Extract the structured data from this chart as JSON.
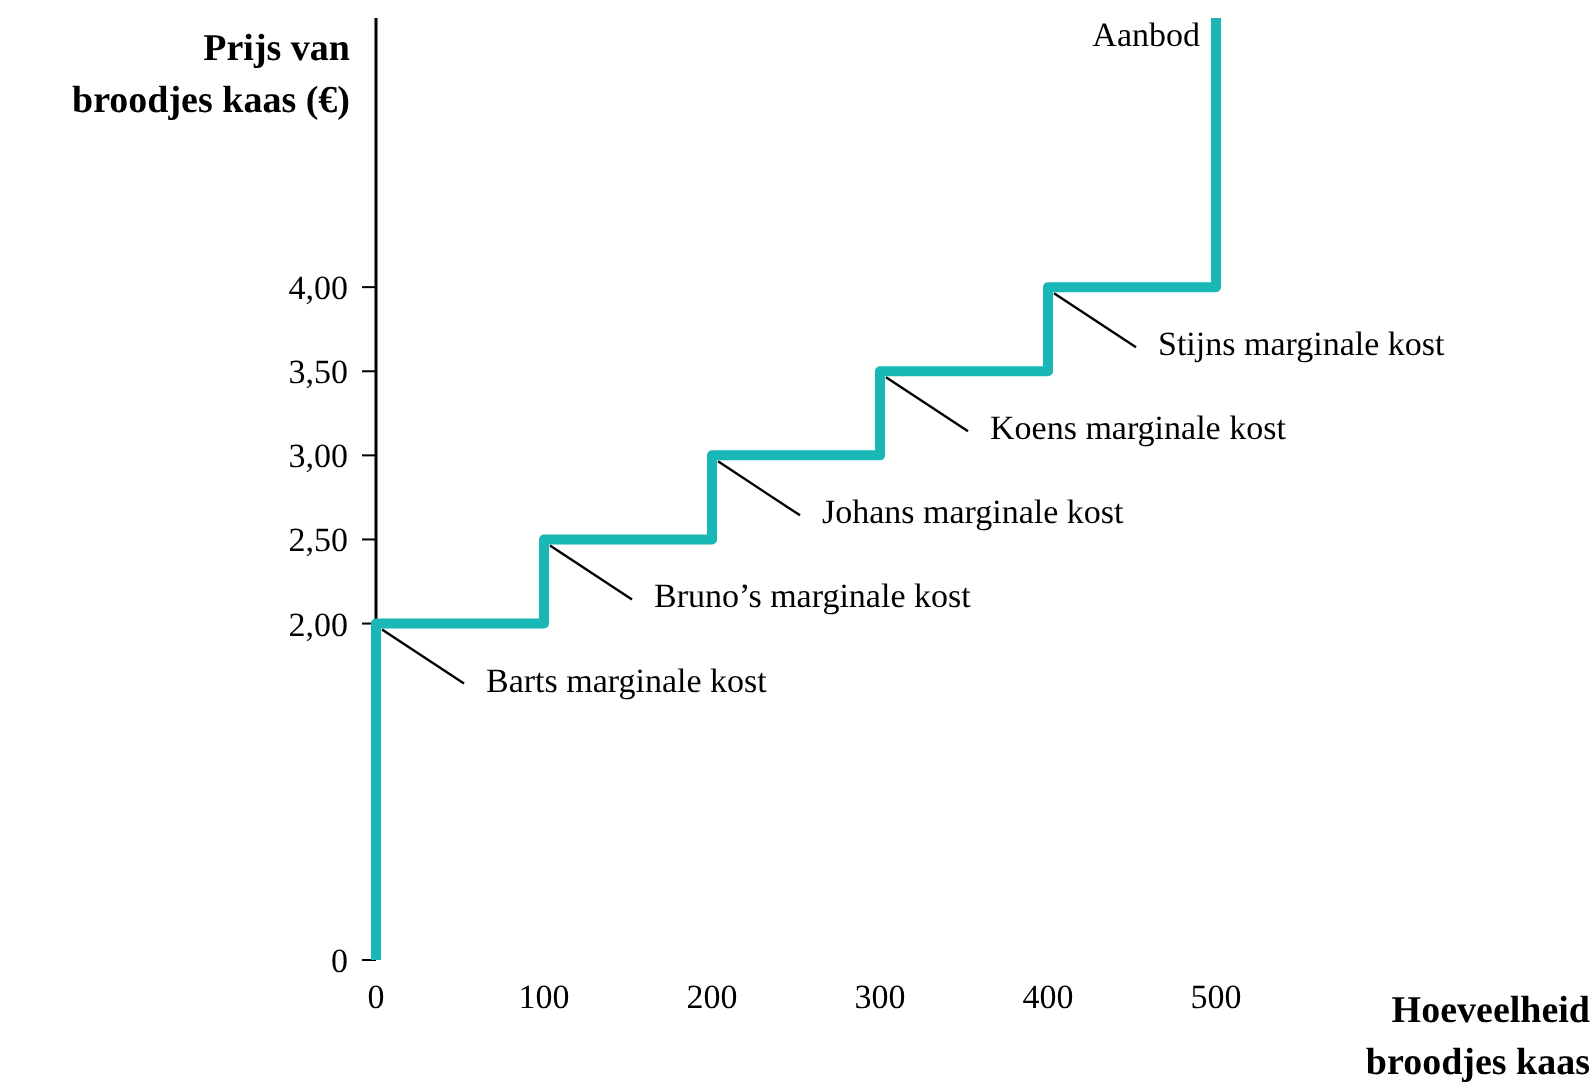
{
  "chart_data": {
    "type": "line",
    "xlabel": "Hoeveelheid broodjes kaas",
    "ylabel": "Prijs van broodjes kaas (€)",
    "xlim": [
      0,
      500
    ],
    "ylim": [
      0,
      5.6
    ],
    "xticks": [
      0,
      100,
      200,
      300,
      400,
      500
    ],
    "yticks": [
      0,
      {
        "value": 2,
        "label": "2,00"
      },
      {
        "value": 2.5,
        "label": "2,50"
      },
      {
        "value": 3,
        "label": "3,00"
      },
      {
        "value": 3.5,
        "label": "3,50"
      },
      {
        "value": 4,
        "label": "4,00"
      }
    ],
    "series": [
      {
        "name": "Aanbod",
        "color": "#1ab7b7",
        "x": [
          0,
          0,
          100,
          100,
          200,
          200,
          300,
          300,
          400,
          400,
          500,
          500
        ],
        "values": [
          0,
          2,
          2,
          2.5,
          2.5,
          3,
          3,
          3.5,
          3.5,
          4,
          4,
          5.6
        ]
      }
    ],
    "annotations": [
      {
        "text": "Barts marginale kost",
        "x": 0,
        "y": 2
      },
      {
        "text": "Bruno’s marginale kost",
        "x": 100,
        "y": 2.5
      },
      {
        "text": "Johans marginale kost",
        "x": 200,
        "y": 3
      },
      {
        "text": "Koens marginale kost",
        "x": 300,
        "y": 3.5
      },
      {
        "text": "Stijns marginale kost",
        "x": 400,
        "y": 4
      }
    ],
    "grid": false,
    "marker": "none",
    "line_style": "solid"
  }
}
